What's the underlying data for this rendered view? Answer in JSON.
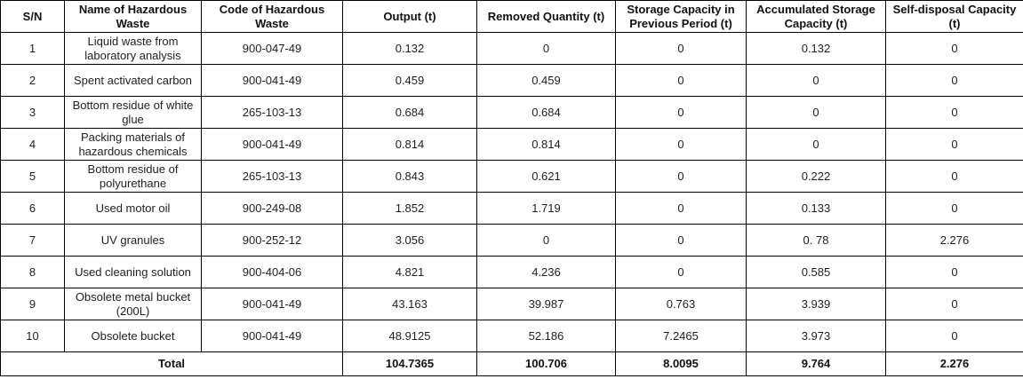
{
  "table": {
    "columns": [
      {
        "key": "sn",
        "label": "S/N"
      },
      {
        "key": "name",
        "label": "Name of Hazardous Waste"
      },
      {
        "key": "code",
        "label": "Code of Hazardous Waste"
      },
      {
        "key": "output",
        "label": "Output (t)"
      },
      {
        "key": "removed",
        "label": "Removed Quantity (t)"
      },
      {
        "key": "storage_previous",
        "label": "Storage Capacity in Previous Period (t)"
      },
      {
        "key": "accumulated",
        "label": "Accumulated Storage Capacity (t)"
      },
      {
        "key": "self_disposal",
        "label": "Self-disposal Capacity (t)"
      }
    ],
    "rows": [
      {
        "sn": "1",
        "name": "Liquid waste from laboratory analysis",
        "code": "900-047-49",
        "output": "0.132",
        "removed": "0",
        "storage_previous": "0",
        "accumulated": "0.132",
        "self_disposal": "0"
      },
      {
        "sn": "2",
        "name": "Spent activated carbon",
        "code": "900-041-49",
        "output": "0.459",
        "removed": "0.459",
        "storage_previous": "0",
        "accumulated": "0",
        "self_disposal": "0"
      },
      {
        "sn": "3",
        "name": "Bottom residue of white glue",
        "code": "265-103-13",
        "output": "0.684",
        "removed": "0.684",
        "storage_previous": "0",
        "accumulated": "0",
        "self_disposal": "0"
      },
      {
        "sn": "4",
        "name": "Packing materials of hazardous chemicals",
        "code": "900-041-49",
        "output": "0.814",
        "removed": "0.814",
        "storage_previous": "0",
        "accumulated": "0",
        "self_disposal": "0"
      },
      {
        "sn": "5",
        "name": "Bottom residue of polyurethane",
        "code": "265-103-13",
        "output": "0.843",
        "removed": "0.621",
        "storage_previous": "0",
        "accumulated": "0.222",
        "self_disposal": "0"
      },
      {
        "sn": "6",
        "name": "Used motor oil",
        "code": "900-249-08",
        "output": "1.852",
        "removed": "1.719",
        "storage_previous": "0",
        "accumulated": "0.133",
        "self_disposal": "0"
      },
      {
        "sn": "7",
        "name": "UV granules",
        "code": "900-252-12",
        "output": "3.056",
        "removed": "0",
        "storage_previous": "0",
        "accumulated": "0. 78",
        "self_disposal": "2.276"
      },
      {
        "sn": "8",
        "name": "Used cleaning solution",
        "code": "900-404-06",
        "output": "4.821",
        "removed": "4.236",
        "storage_previous": "0",
        "accumulated": "0.585",
        "self_disposal": "0"
      },
      {
        "sn": "9",
        "name": "Obsolete metal bucket (200L)",
        "code": "900-041-49",
        "output": "43.163",
        "removed": "39.987",
        "storage_previous": "0.763",
        "accumulated": "3.939",
        "self_disposal": "0"
      },
      {
        "sn": "10",
        "name": "Obsolete bucket",
        "code": "900-041-49",
        "output": "48.9125",
        "removed": "52.186",
        "storage_previous": "7.2465",
        "accumulated": "3.973",
        "self_disposal": "0"
      }
    ],
    "total": {
      "label": "Total",
      "output": "104.7365",
      "removed": "100.706",
      "storage_previous": "8.0095",
      "accumulated": "9.764",
      "self_disposal": "2.276"
    }
  }
}
